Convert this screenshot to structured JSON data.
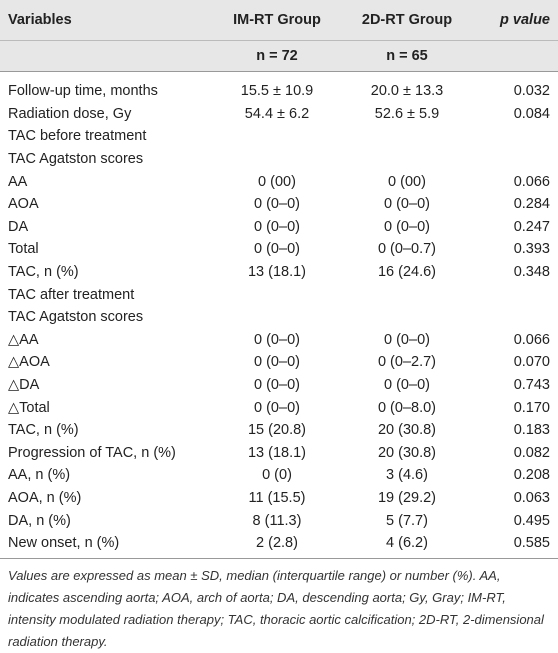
{
  "table": {
    "header": [
      "Variables",
      "IM-RT Group",
      "2D-RT Group",
      "p value"
    ],
    "subheader": [
      "n = 72",
      "n = 65"
    ],
    "rows": [
      [
        "Follow-up time, months",
        "15.5 ± 10.9",
        "20.0 ± 13.3",
        "0.032"
      ],
      [
        "Radiation dose, Gy",
        "54.4 ± 6.2",
        "52.6 ± 5.9",
        "0.084"
      ],
      [
        "TAC before treatment"
      ],
      [
        "TAC Agatston scores"
      ],
      [
        "AA",
        "0 (00)",
        "0 (00)",
        "0.066"
      ],
      [
        "AOA",
        "0 (0–0)",
        "0 (0–0)",
        "0.284"
      ],
      [
        "DA",
        "0 (0–0)",
        "0 (0–0)",
        "0.247"
      ],
      [
        "Total",
        "0 (0–0)",
        "0 (0–0.7)",
        "0.393"
      ],
      [
        "TAC, n (%)",
        "13 (18.1)",
        "16 (24.6)",
        "0.348"
      ],
      [
        "TAC after treatment"
      ],
      [
        "TAC Agatston scores"
      ],
      [
        "△AA",
        "0 (0–0)",
        "0 (0–0)",
        "0.066"
      ],
      [
        "△AOA",
        "0 (0–0)",
        "0 (0–2.7)",
        "0.070"
      ],
      [
        "△DA",
        "0 (0–0)",
        "0 (0–0)",
        "0.743"
      ],
      [
        "△Total",
        "0 (0–0)",
        "0 (0–8.0)",
        "0.170"
      ],
      [
        "TAC, n (%)",
        "15 (20.8)",
        "20 (30.8)",
        "0.183"
      ],
      [
        "Progression of TAC, n (%)",
        "13 (18.1)",
        "20 (30.8)",
        "0.082"
      ],
      [
        "AA, n (%)",
        "0 (0)",
        "3 (4.6)",
        "0.208"
      ],
      [
        "AOA, n (%)",
        "11 (15.5)",
        "19 (29.2)",
        "0.063"
      ],
      [
        "DA, n (%)",
        "8 (11.3)",
        "5 (7.7)",
        "0.495"
      ],
      [
        "New onset, n (%)",
        "2 (2.8)",
        "4 (6.2)",
        "0.585"
      ]
    ],
    "footnote": "Values are expressed as mean ± SD, median (interquartile range) or number (%). AA, indicates ascending aorta; AOA, arch of aorta; DA, descending aorta; Gy, Gray; IM-RT, intensity modulated radiation therapy; TAC, thoracic aortic calcification; 2D-RT, 2-dimensional radiation therapy."
  }
}
